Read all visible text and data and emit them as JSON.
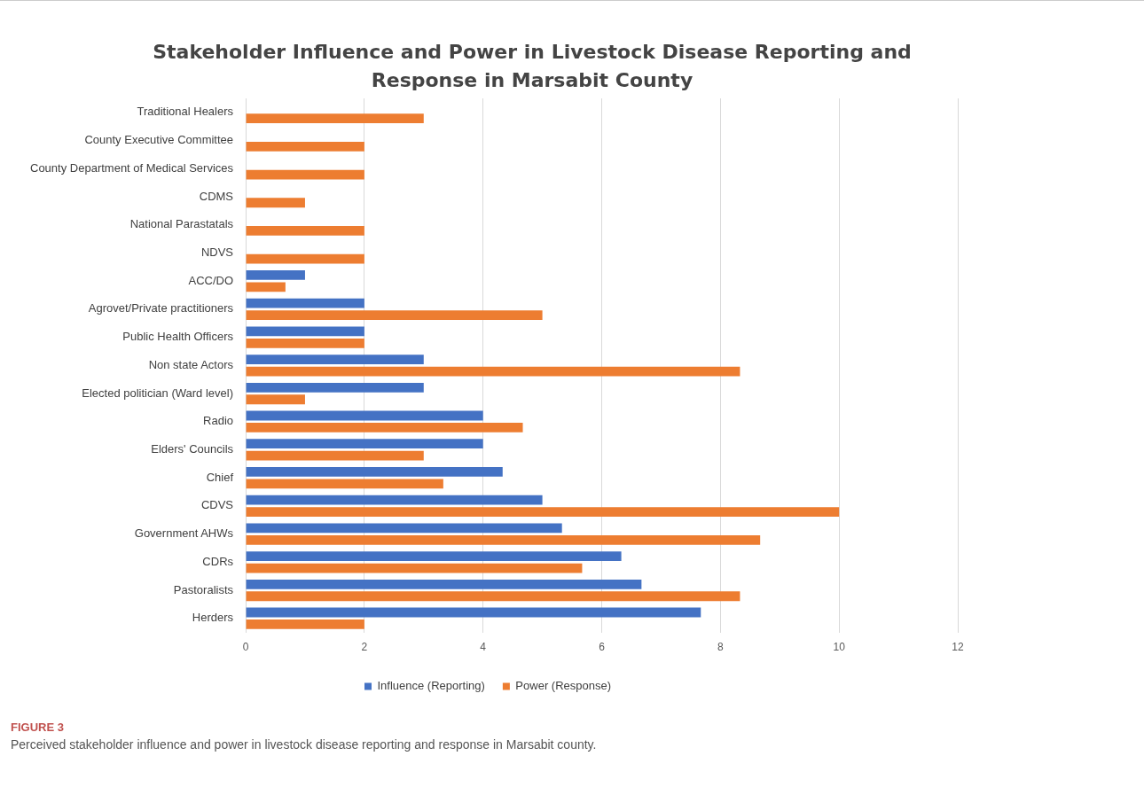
{
  "chart_data": {
    "type": "bar",
    "orientation": "horizontal",
    "title": "Stakeholder Influence and Power in Livestock Disease Reporting and Response in Marsabit County",
    "categories": [
      "Traditional Healers",
      "County Executive Committee",
      "County Department of Medical Services",
      "CDMS",
      "National Parastatals",
      "NDVS",
      "ACC/DO",
      "Agrovet/Private practitioners",
      "Public Health Officers",
      "Non state Actors",
      "Elected politician (Ward level)",
      "Radio",
      "Elders' Councils",
      "Chief",
      "CDVS",
      "Government AHWs",
      "CDRs",
      "Pastoralists",
      "Herders"
    ],
    "series": [
      {
        "name": "Influence (Reporting)",
        "color": "#4472c4",
        "values": [
          null,
          null,
          null,
          null,
          null,
          null,
          1,
          2,
          2,
          3,
          3,
          4,
          4,
          4.33,
          5,
          5.33,
          6.33,
          6.67,
          7.67
        ]
      },
      {
        "name": "Power (Response)",
        "color": "#ed7d31",
        "values": [
          3,
          2,
          2,
          1,
          2,
          2,
          0.67,
          5,
          2,
          8.33,
          1,
          4.67,
          3,
          3.33,
          10,
          8.67,
          5.67,
          8.33,
          2
        ]
      }
    ],
    "xlim": [
      0,
      12
    ],
    "xticks": [
      0,
      2,
      4,
      6,
      8,
      10,
      12
    ],
    "grid": "x",
    "legend": "bottom",
    "annotations": [
      "FIGURE 3",
      "Perceived stakeholder influence and power in livestock disease reporting and response in Marsabit county."
    ]
  }
}
